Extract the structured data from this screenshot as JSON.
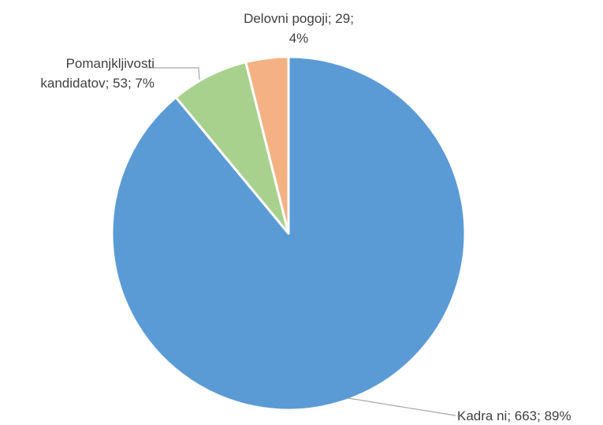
{
  "chart_data": {
    "type": "pie",
    "title": "",
    "start_angle_deg": 0,
    "direction": "clockwise",
    "legend": "none",
    "slices": [
      {
        "category": "Kadra ni",
        "value": 663,
        "percent": "89%",
        "color": "#5b9bd5",
        "label_lines": [
          "Kadra ni; 663; 89%"
        ]
      },
      {
        "category": "Pomanjkljivosti kandidatov",
        "value": 53,
        "percent": "7%",
        "color": "#a9d18e",
        "label_lines": [
          "Pomanjkljivosti",
          "kandidatov; 53; 7%"
        ]
      },
      {
        "category": "Delovni pogoji",
        "value": 29,
        "percent": "4%",
        "color": "#f4b183",
        "label_lines": [
          "Delovni pogoji; 29;",
          "4%"
        ]
      }
    ]
  }
}
